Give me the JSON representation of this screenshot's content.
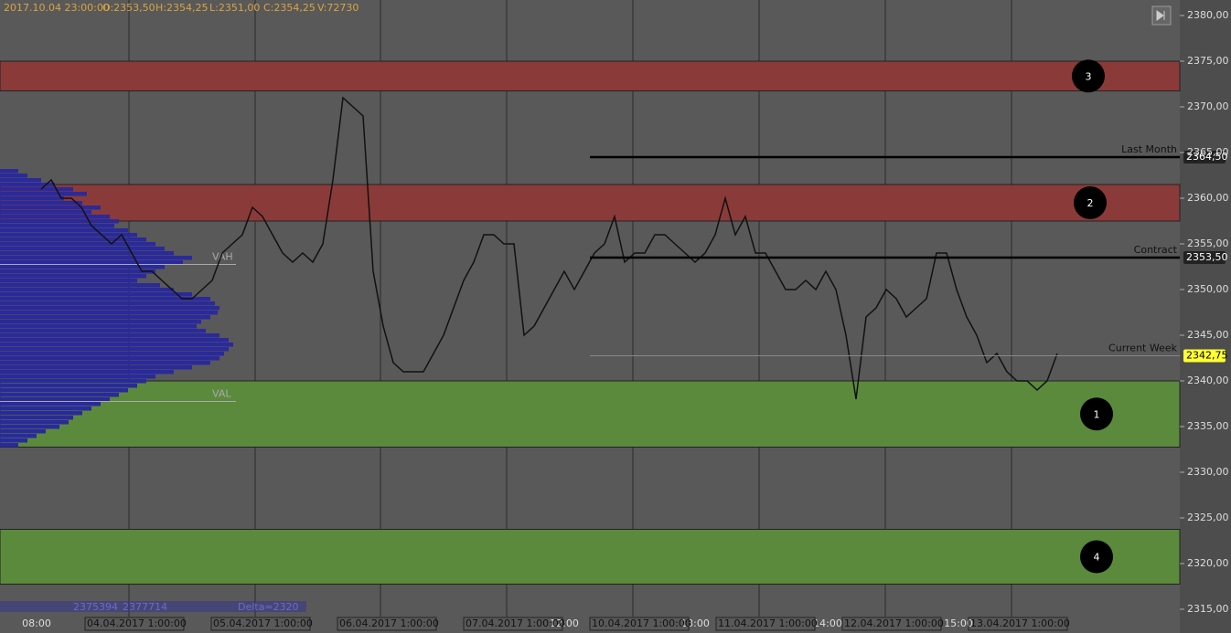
{
  "header": {
    "datetime": "2017.10.04 23:00:00",
    "open": "O:2353,50",
    "high": "H:2354,25",
    "low": "L:2351,00",
    "close": "C:2354,25",
    "volume": "V:72730"
  },
  "ylim": [
    2315,
    2380
  ],
  "yticks": [
    {
      "value": 2380,
      "label": "2380,00"
    },
    {
      "value": 2375,
      "label": "2375,00"
    },
    {
      "value": 2370,
      "label": "2370,00"
    },
    {
      "value": 2365,
      "label": "2365,00"
    },
    {
      "value": 2360,
      "label": "2360,00"
    },
    {
      "value": 2355,
      "label": "2355,00"
    },
    {
      "value": 2350,
      "label": "2350,00"
    },
    {
      "value": 2345,
      "label": "2345,00"
    },
    {
      "value": 2340,
      "label": "2340,00"
    },
    {
      "value": 2335,
      "label": "2335,00"
    },
    {
      "value": 2330,
      "label": "2330,00"
    },
    {
      "value": 2325,
      "label": "2325,00"
    },
    {
      "value": 2320,
      "label": "2320,00"
    },
    {
      "value": 2315,
      "label": "2315,00"
    }
  ],
  "zones": [
    {
      "label": "3",
      "from": 2375,
      "to": 2371.75,
      "color": "#8b3a3a"
    },
    {
      "label": "2",
      "from": 2361.5,
      "to": 2357.5,
      "color": "#8b3a3a"
    },
    {
      "label": "1",
      "from": 2340,
      "to": 2332.75,
      "color": "#5b8a3c"
    },
    {
      "label": "4",
      "from": 2323.75,
      "to": 2317.75,
      "color": "#5b8a3c"
    }
  ],
  "levels": [
    {
      "name": "Last Month",
      "value": 2364.5,
      "price_label": "2364,50"
    },
    {
      "name": "Contract",
      "value": 2353.5,
      "price_label": "2353,50"
    },
    {
      "name": "Current Week",
      "value": 2342.75,
      "price_label": "2342,75"
    }
  ],
  "profile": {
    "vah_label": "VAH",
    "val_label": "VAL",
    "vah": 2352.75,
    "val": 2337.75,
    "volumes": [
      20,
      30,
      45,
      60,
      80,
      95,
      70,
      90,
      110,
      100,
      120,
      130,
      125,
      140,
      150,
      160,
      170,
      180,
      190,
      210,
      200,
      180,
      170,
      160,
      150,
      175,
      190,
      210,
      230,
      235,
      240,
      238,
      230,
      220,
      215,
      225,
      240,
      250,
      255,
      250,
      245,
      240,
      230,
      210,
      190,
      170,
      160,
      150,
      140,
      130,
      120,
      110,
      100,
      90,
      80,
      75,
      65,
      50,
      40,
      30,
      20
    ]
  },
  "price": {
    "values": [
      2361,
      2362,
      2360,
      2360,
      2359,
      2357,
      2356,
      2355,
      2356,
      2354,
      2352,
      2352,
      2351,
      2350,
      2349,
      2349,
      2350,
      2351,
      2354,
      2355,
      2356,
      2359,
      2358,
      2356,
      2354,
      2353,
      2354,
      2353,
      2355,
      2362,
      2371,
      2370,
      2369,
      2352,
      2346,
      2342,
      2341,
      2341,
      2341,
      2343,
      2345,
      2348,
      2351,
      2353,
      2356,
      2356,
      2355,
      2355,
      2345,
      2346,
      2348,
      2350,
      2352,
      2350,
      2352,
      2354,
      2355,
      2358,
      2353,
      2354,
      2354,
      2356,
      2356,
      2355,
      2354,
      2353,
      2354,
      2356,
      2360,
      2356,
      2358,
      2354,
      2354,
      2352,
      2350,
      2350,
      2351,
      2350,
      2352,
      2350,
      2345,
      2338,
      2347,
      2348,
      2350,
      2349,
      2347,
      2348,
      2349,
      2354,
      2354,
      2350,
      2347,
      2345,
      2342,
      2343,
      2341,
      2340,
      2340,
      2339,
      2340,
      2343
    ]
  },
  "time_labels": [
    "08:00",
    "12:00",
    "13:00",
    "14:00",
    "15:00"
  ],
  "date_labels": [
    "04.04.2017 1:00:00",
    "05.04.2017 1:00:00",
    "06.04.2017 1:00:00",
    "07.04.2017 1:00:00",
    "10.04.2017 1:00:00",
    "11.04.2017 1:00:00",
    "12.04.2017 1:00:00",
    "13.04.2017 1:00:00"
  ],
  "footer": {
    "bid": "2375394",
    "ask": "2377714",
    "delta": "Delta=2320"
  }
}
